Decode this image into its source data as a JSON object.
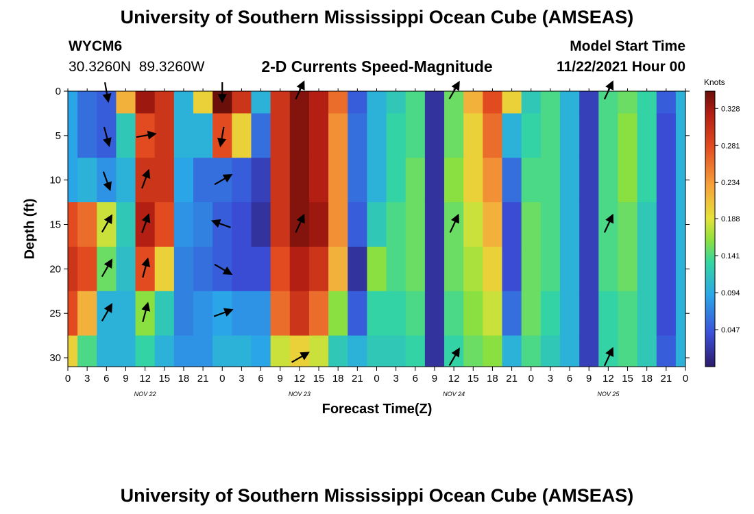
{
  "header": {
    "title": "University of Southern Mississippi Ocean Cube (AMSEAS)",
    "station_id": "WYCM6",
    "coordinates": "30.3260N  89.3260W",
    "subtitle": "2-D Currents Speed-Magnitude",
    "model_start_label": "Model Start Time",
    "model_start_value": "11/22/2021 Hour 00",
    "repeat_title": "University of Southern Mississippi Ocean Cube (AMSEAS)"
  },
  "chart_data": {
    "type": "heatmap",
    "title": "2-D Currents Speed-Magnitude",
    "xlabel": "Forecast Time(Z)",
    "ylabel": "Depth (ft)",
    "xlim": [
      0,
      96
    ],
    "ylim": [
      31,
      0
    ],
    "x_tick_labels": [
      "0",
      "3",
      "6",
      "9",
      "12",
      "15",
      "18",
      "21",
      "0",
      "3",
      "6",
      "9",
      "12",
      "15",
      "18",
      "21",
      "0",
      "3",
      "6",
      "9",
      "12",
      "15",
      "18",
      "21",
      "0",
      "3",
      "6",
      "9",
      "12",
      "15",
      "18",
      "21",
      "0"
    ],
    "y_ticks": [
      0,
      5,
      10,
      15,
      20,
      25,
      30
    ],
    "day_labels": [
      {
        "label": "NOV 22",
        "hour": 12
      },
      {
        "label": "NOV 23",
        "hour": 36
      },
      {
        "label": "NOV 24",
        "hour": 60
      },
      {
        "label": "NOV 25",
        "hour": 84
      }
    ],
    "colorbar": {
      "unit": "Knots",
      "min": 0.0,
      "max": 0.35,
      "tick_values": [
        0.047,
        0.094,
        0.141,
        0.188,
        0.234,
        0.281,
        0.328
      ],
      "tick_labels": [
        "0.047",
        "0.094",
        "0.141",
        "0.188",
        "0.234",
        "0.281",
        "0.328"
      ]
    },
    "speed_profile": [
      {
        "hour": 0,
        "values": [
          0.09,
          0.09,
          0.09,
          0.28,
          0.3,
          0.28,
          0.2
        ]
      },
      {
        "hour": 3,
        "values": [
          0.06,
          0.06,
          0.1,
          0.26,
          0.28,
          0.22,
          0.14
        ]
      },
      {
        "hour": 6,
        "values": [
          0.05,
          0.05,
          0.08,
          0.18,
          0.15,
          0.1,
          0.1
        ]
      },
      {
        "hour": 9,
        "values": [
          0.22,
          0.12,
          0.1,
          0.12,
          0.11,
          0.1,
          0.1
        ]
      },
      {
        "hour": 12,
        "values": [
          0.33,
          0.28,
          0.3,
          0.32,
          0.28,
          0.16,
          0.13
        ]
      },
      {
        "hour": 15,
        "values": [
          0.3,
          0.3,
          0.3,
          0.28,
          0.2,
          0.12,
          0.1
        ]
      },
      {
        "hour": 18,
        "values": [
          0.1,
          0.1,
          0.09,
          0.08,
          0.07,
          0.07,
          0.08
        ]
      },
      {
        "hour": 21,
        "values": [
          0.2,
          0.1,
          0.06,
          0.07,
          0.06,
          0.08,
          0.08
        ]
      },
      {
        "hour": 24,
        "values": [
          0.35,
          0.28,
          0.06,
          0.05,
          0.05,
          0.09,
          0.1
        ]
      },
      {
        "hour": 27,
        "values": [
          0.3,
          0.2,
          0.05,
          0.04,
          0.04,
          0.08,
          0.1
        ]
      },
      {
        "hour": 30,
        "values": [
          0.1,
          0.06,
          0.03,
          0.02,
          0.04,
          0.08,
          0.09
        ]
      },
      {
        "hour": 33,
        "values": [
          0.3,
          0.3,
          0.3,
          0.3,
          0.28,
          0.26,
          0.18
        ]
      },
      {
        "hour": 36,
        "values": [
          0.34,
          0.34,
          0.34,
          0.34,
          0.32,
          0.3,
          0.2
        ]
      },
      {
        "hour": 39,
        "values": [
          0.32,
          0.32,
          0.32,
          0.33,
          0.3,
          0.26,
          0.18
        ]
      },
      {
        "hour": 42,
        "values": [
          0.26,
          0.24,
          0.24,
          0.24,
          0.22,
          0.16,
          0.12
        ]
      },
      {
        "hour": 45,
        "values": [
          0.05,
          0.06,
          0.06,
          0.05,
          0.02,
          0.05,
          0.1
        ]
      },
      {
        "hour": 48,
        "values": [
          0.1,
          0.1,
          0.1,
          0.12,
          0.16,
          0.13,
          0.12
        ]
      },
      {
        "hour": 51,
        "values": [
          0.12,
          0.13,
          0.13,
          0.14,
          0.14,
          0.13,
          0.12
        ]
      },
      {
        "hour": 54,
        "values": [
          0.14,
          0.14,
          0.15,
          0.15,
          0.15,
          0.14,
          0.13
        ]
      },
      {
        "hour": 57,
        "values": [
          0.02,
          0.02,
          0.02,
          0.02,
          0.02,
          0.02,
          0.02
        ]
      },
      {
        "hour": 60,
        "values": [
          0.15,
          0.15,
          0.16,
          0.15,
          0.15,
          0.14,
          0.13
        ]
      },
      {
        "hour": 63,
        "values": [
          0.22,
          0.2,
          0.2,
          0.18,
          0.17,
          0.16,
          0.15
        ]
      },
      {
        "hour": 66,
        "values": [
          0.28,
          0.26,
          0.24,
          0.22,
          0.2,
          0.18,
          0.16
        ]
      },
      {
        "hour": 69,
        "values": [
          0.2,
          0.1,
          0.06,
          0.04,
          0.04,
          0.06,
          0.1
        ]
      },
      {
        "hour": 72,
        "values": [
          0.12,
          0.13,
          0.14,
          0.15,
          0.15,
          0.15,
          0.14
        ]
      },
      {
        "hour": 75,
        "values": [
          0.14,
          0.14,
          0.14,
          0.14,
          0.14,
          0.13,
          0.12
        ]
      },
      {
        "hour": 78,
        "values": [
          0.1,
          0.1,
          0.1,
          0.1,
          0.1,
          0.1,
          0.1
        ]
      },
      {
        "hour": 81,
        "values": [
          0.03,
          0.03,
          0.03,
          0.03,
          0.03,
          0.03,
          0.03
        ]
      },
      {
        "hour": 84,
        "values": [
          0.14,
          0.14,
          0.14,
          0.14,
          0.14,
          0.13,
          0.13
        ]
      },
      {
        "hour": 87,
        "values": [
          0.15,
          0.16,
          0.16,
          0.15,
          0.15,
          0.14,
          0.14
        ]
      },
      {
        "hour": 90,
        "values": [
          0.13,
          0.13,
          0.13,
          0.12,
          0.12,
          0.12,
          0.12
        ]
      },
      {
        "hour": 93,
        "values": [
          0.05,
          0.04,
          0.04,
          0.04,
          0.04,
          0.04,
          0.05
        ]
      },
      {
        "hour": 96,
        "values": [
          0.1,
          0.1,
          0.1,
          0.1,
          0.1,
          0.1,
          0.1
        ]
      }
    ],
    "profile_depths": [
      0,
      5,
      10,
      15,
      20,
      25,
      30
    ],
    "vectors": [
      {
        "hour": 6,
        "depth": 0,
        "dir_deg": 170
      },
      {
        "hour": 6,
        "depth": 5,
        "dir_deg": 165
      },
      {
        "hour": 6,
        "depth": 10,
        "dir_deg": 160
      },
      {
        "hour": 6,
        "depth": 15,
        "dir_deg": 30
      },
      {
        "hour": 6,
        "depth": 20,
        "dir_deg": 30
      },
      {
        "hour": 6,
        "depth": 25,
        "dir_deg": 30
      },
      {
        "hour": 12,
        "depth": 5,
        "dir_deg": 80
      },
      {
        "hour": 12,
        "depth": 10,
        "dir_deg": 20
      },
      {
        "hour": 12,
        "depth": 15,
        "dir_deg": 20
      },
      {
        "hour": 12,
        "depth": 20,
        "dir_deg": 15
      },
      {
        "hour": 12,
        "depth": 25,
        "dir_deg": 15
      },
      {
        "hour": 24,
        "depth": 0,
        "dir_deg": 180
      },
      {
        "hour": 24,
        "depth": 5,
        "dir_deg": 190
      },
      {
        "hour": 24,
        "depth": 10,
        "dir_deg": 60
      },
      {
        "hour": 24,
        "depth": 15,
        "dir_deg": 290
      },
      {
        "hour": 24,
        "depth": 20,
        "dir_deg": 120
      },
      {
        "hour": 24,
        "depth": 25,
        "dir_deg": 70
      },
      {
        "hour": 36,
        "depth": 0,
        "dir_deg": 25
      },
      {
        "hour": 36,
        "depth": 15,
        "dir_deg": 25
      },
      {
        "hour": 36,
        "depth": 30,
        "dir_deg": 60
      },
      {
        "hour": 60,
        "depth": 0,
        "dir_deg": 30
      },
      {
        "hour": 60,
        "depth": 15,
        "dir_deg": 25
      },
      {
        "hour": 60,
        "depth": 30,
        "dir_deg": 30
      },
      {
        "hour": 84,
        "depth": 0,
        "dir_deg": 25
      },
      {
        "hour": 84,
        "depth": 15,
        "dir_deg": 25
      },
      {
        "hour": 84,
        "depth": 30,
        "dir_deg": 25
      }
    ]
  }
}
